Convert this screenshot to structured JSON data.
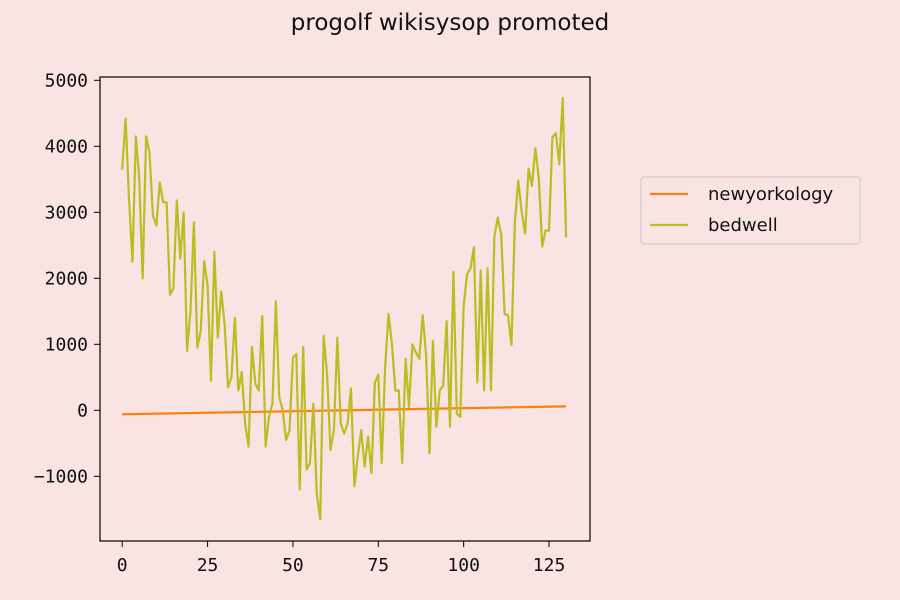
{
  "colors": {
    "background": "#fae3e3",
    "newyorkology": "#ff7f0e",
    "bedwell": "#bcbd22"
  },
  "chart_data": {
    "type": "line",
    "title": "progolf wikisysop promoted",
    "xlabel": "",
    "ylabel": "",
    "xlim": [
      -6.5,
      137
    ],
    "ylim": [
      -1980,
      5050
    ],
    "xticks": [
      0,
      25,
      50,
      75,
      100,
      125
    ],
    "yticks": [
      -1000,
      0,
      1000,
      2000,
      3000,
      4000,
      5000
    ],
    "grid": false,
    "legend_position": "outside-right",
    "series": [
      {
        "name": "newyorkology",
        "color": "#ff7f0e",
        "x": [
          0,
          130
        ],
        "y": [
          -60,
          60
        ]
      },
      {
        "name": "bedwell",
        "color": "#bcbd22",
        "x": [
          0,
          1,
          2,
          3,
          4,
          5,
          6,
          7,
          8,
          9,
          10,
          11,
          12,
          13,
          14,
          15,
          16,
          17,
          18,
          19,
          20,
          21,
          22,
          23,
          24,
          25,
          26,
          27,
          28,
          29,
          30,
          31,
          32,
          33,
          34,
          35,
          36,
          37,
          38,
          39,
          40,
          41,
          42,
          43,
          44,
          45,
          46,
          47,
          48,
          49,
          50,
          51,
          52,
          53,
          54,
          55,
          56,
          57,
          58,
          59,
          60,
          61,
          62,
          63,
          64,
          65,
          66,
          67,
          68,
          69,
          70,
          71,
          72,
          73,
          74,
          75,
          76,
          77,
          78,
          79,
          80,
          81,
          82,
          83,
          84,
          85,
          86,
          87,
          88,
          89,
          90,
          91,
          92,
          93,
          94,
          95,
          96,
          97,
          98,
          99,
          100,
          101,
          102,
          103,
          104,
          105,
          106,
          107,
          108,
          109,
          110,
          111,
          112,
          113,
          114,
          115,
          116,
          117,
          118,
          119,
          120,
          121,
          122,
          123,
          124,
          125,
          126,
          127,
          128,
          129,
          130
        ],
        "y": [
          3650,
          4420,
          3200,
          2250,
          4150,
          3500,
          2000,
          4150,
          3900,
          2950,
          2800,
          3450,
          3150,
          3150,
          1750,
          1850,
          3180,
          2300,
          3000,
          900,
          1500,
          2850,
          950,
          1200,
          2260,
          1900,
          450,
          2400,
          1100,
          1800,
          1300,
          350,
          500,
          1400,
          300,
          580,
          -200,
          -550,
          960,
          400,
          300,
          1430,
          -550,
          -100,
          100,
          1650,
          200,
          0,
          -450,
          -300,
          800,
          850,
          -1200,
          960,
          -900,
          -800,
          100,
          -1280,
          -1650,
          1130,
          550,
          -600,
          -300,
          1100,
          -200,
          -350,
          -200,
          330,
          -1150,
          -700,
          -300,
          -850,
          -400,
          -950,
          420,
          540,
          -800,
          650,
          1460,
          1000,
          300,
          300,
          -800,
          780,
          50,
          1000,
          880,
          780,
          1440,
          840,
          -650,
          1050,
          -250,
          300,
          370,
          1350,
          -250,
          2100,
          -50,
          -100,
          1580,
          2060,
          2150,
          2470,
          420,
          2120,
          300,
          2150,
          300,
          2630,
          2920,
          2660,
          1460,
          1440,
          990,
          2850,
          3480,
          3000,
          2680,
          3660,
          3400,
          3970,
          3520,
          2480,
          2730,
          2720,
          4140,
          4200,
          3730,
          4730,
          2620
        ]
      }
    ]
  }
}
